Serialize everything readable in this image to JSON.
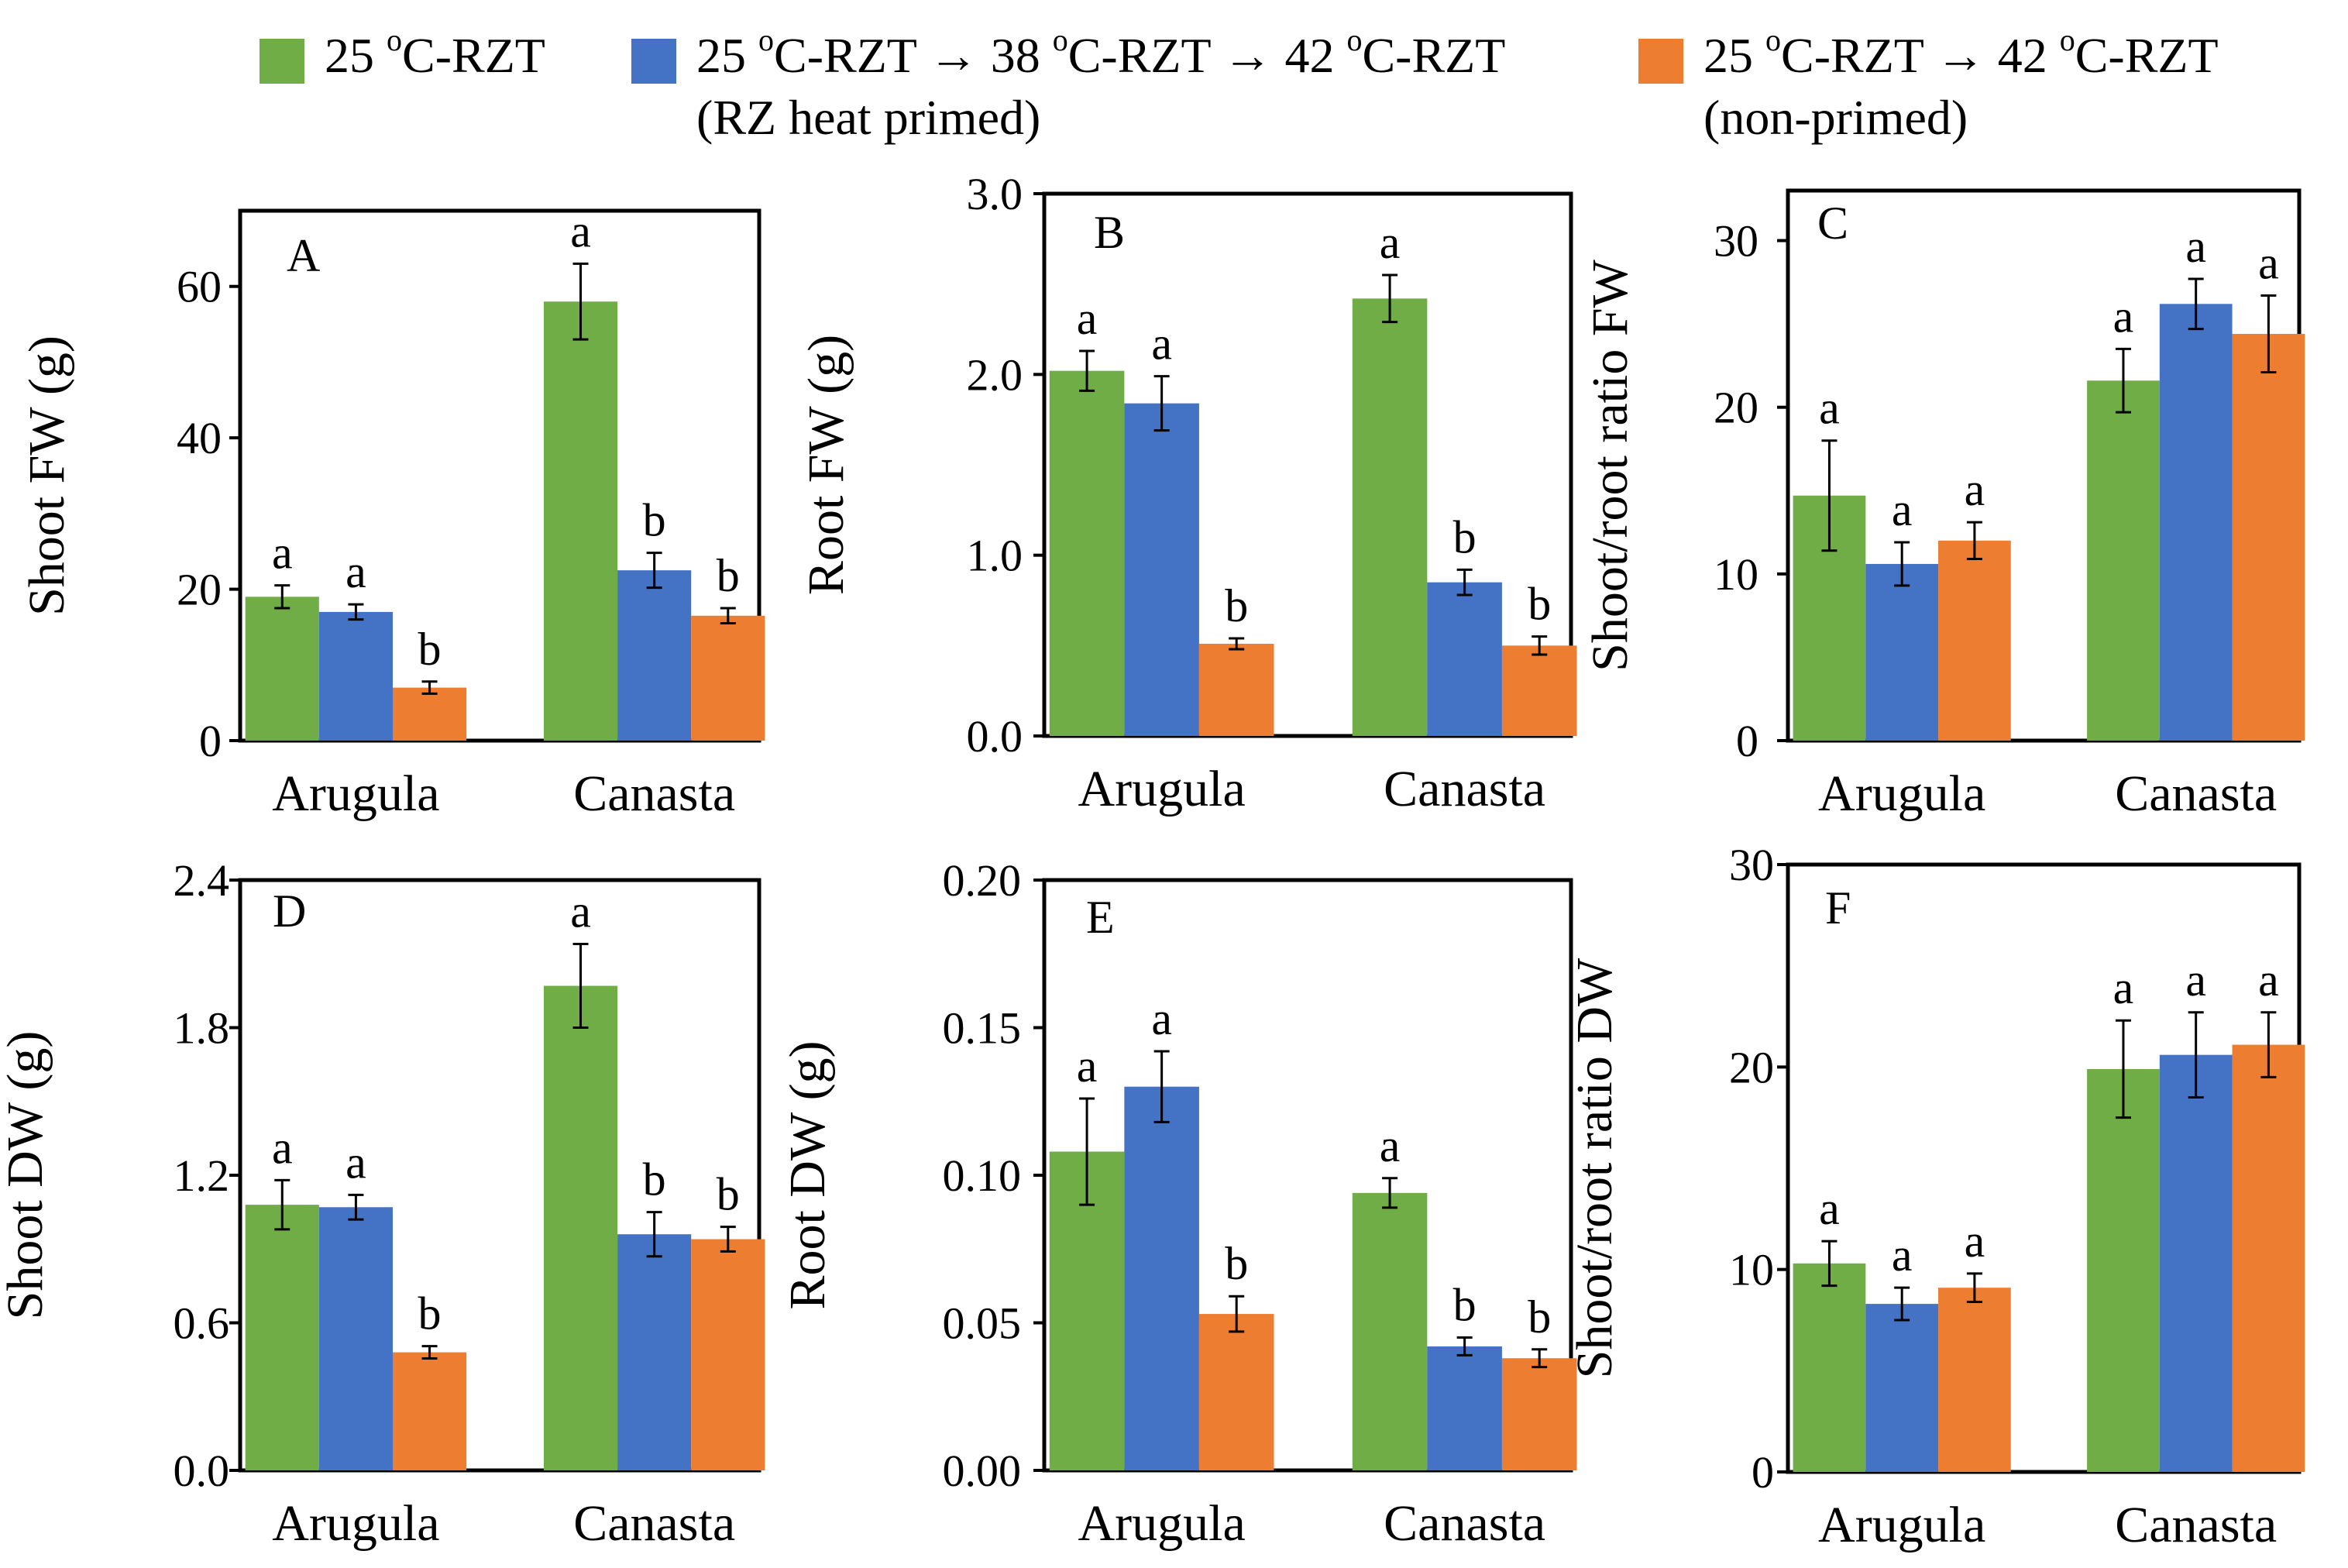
{
  "legend": {
    "items": [
      {
        "name": "legend-25C",
        "line1": "25 ",
        "sup": "o",
        "rest": "C-RZT",
        "line2": "",
        "color": "#70ad47"
      },
      {
        "name": "legend-primed",
        "line1": "25 ",
        "sup": "o",
        "rest": "C-RZT → 38 ",
        "sup2": "o",
        "rest2": "C-RZT → 42 ",
        "sup3": "o",
        "rest3": "C-RZT",
        "line2": "(RZ heat primed)",
        "color": "#4472c4"
      },
      {
        "name": "legend-nonprimed",
        "line1": "25 ",
        "sup": "o",
        "rest": "C-RZT → 42 ",
        "sup2": "o",
        "rest2": "C-RZT",
        "line2": "(non-primed)",
        "color": "#ed7d31"
      }
    ]
  },
  "colors": {
    "green": "#70ad47",
    "blue": "#4472c4",
    "orange": "#ed7d31"
  },
  "chart_data": [
    {
      "panel": "A",
      "type": "bar",
      "ylabel": "Shoot FW (g)",
      "ylim": [
        0,
        70
      ],
      "yticks": [
        "0",
        "20",
        "40",
        "60"
      ],
      "ytick_values": [
        0,
        20,
        40,
        60
      ],
      "categories": [
        "Arugula",
        "Canasta"
      ],
      "series": [
        {
          "name": "25 oC-RZT",
          "values": [
            19,
            58
          ],
          "errors": [
            1.5,
            5
          ],
          "letters": [
            "a",
            "a"
          ]
        },
        {
          "name": "RZ heat primed",
          "values": [
            17,
            22.5
          ],
          "errors": [
            1,
            2.3
          ],
          "letters": [
            "a",
            "b"
          ]
        },
        {
          "name": "non-primed",
          "values": [
            7,
            16.5
          ],
          "errors": [
            0.8,
            1
          ],
          "letters": [
            "b",
            "b"
          ]
        }
      ]
    },
    {
      "panel": "B",
      "type": "bar",
      "ylabel": "Root FW (g)",
      "ylim": [
        0,
        3.0
      ],
      "yticks": [
        "0.0",
        "1.0",
        "2.0",
        "3.0"
      ],
      "ytick_values": [
        0,
        1,
        2,
        3
      ],
      "categories": [
        "Arugula",
        "Canasta"
      ],
      "series": [
        {
          "name": "25 oC-RZT",
          "values": [
            2.02,
            2.42
          ],
          "errors": [
            0.11,
            0.13
          ],
          "letters": [
            "a",
            "a"
          ]
        },
        {
          "name": "RZ heat primed",
          "values": [
            1.84,
            0.85
          ],
          "errors": [
            0.15,
            0.07
          ],
          "letters": [
            "a",
            "b"
          ]
        },
        {
          "name": "non-primed",
          "values": [
            0.51,
            0.5
          ],
          "errors": [
            0.03,
            0.05
          ],
          "letters": [
            "b",
            "b"
          ]
        }
      ]
    },
    {
      "panel": "C",
      "type": "bar",
      "ylabel": "Shoot/root ratio FW",
      "ylim": [
        0,
        33
      ],
      "yticks": [
        "0",
        "10",
        "20",
        "30"
      ],
      "ytick_values": [
        0,
        10,
        20,
        30
      ],
      "categories": [
        "Arugula",
        "Canasta"
      ],
      "series": [
        {
          "name": "25 oC-RZT",
          "values": [
            14.7,
            21.6
          ],
          "errors": [
            3.3,
            1.9
          ],
          "letters": [
            "a",
            "a"
          ]
        },
        {
          "name": "RZ heat primed",
          "values": [
            10.6,
            26.2
          ],
          "errors": [
            1.3,
            1.5
          ],
          "letters": [
            "a",
            "a"
          ]
        },
        {
          "name": "non-primed",
          "values": [
            12.0,
            24.4
          ],
          "errors": [
            1.1,
            2.3
          ],
          "letters": [
            "a",
            "a"
          ]
        }
      ]
    },
    {
      "panel": "D",
      "type": "bar",
      "ylabel": "Shoot DW (g)",
      "ylim": [
        0,
        2.4
      ],
      "yticks": [
        "0.0",
        "0.6",
        "1.2",
        "1.8",
        "2.4"
      ],
      "ytick_values": [
        0,
        0.6,
        1.2,
        1.8,
        2.4
      ],
      "categories": [
        "Arugula",
        "Canasta"
      ],
      "series": [
        {
          "name": "25 oC-RZT",
          "values": [
            1.08,
            1.97
          ],
          "errors": [
            0.1,
            0.17
          ],
          "letters": [
            "a",
            "a"
          ]
        },
        {
          "name": "RZ heat primed",
          "values": [
            1.07,
            0.96
          ],
          "errors": [
            0.05,
            0.09
          ],
          "letters": [
            "a",
            "b"
          ]
        },
        {
          "name": "non-primed",
          "values": [
            0.48,
            0.94
          ],
          "errors": [
            0.025,
            0.05
          ],
          "letters": [
            "b",
            "b"
          ]
        }
      ]
    },
    {
      "panel": "E",
      "type": "bar",
      "ylabel": "Root DW (g)",
      "ylim": [
        0,
        0.2
      ],
      "yticks": [
        "0.00",
        "0.05",
        "0.10",
        "0.15",
        "0.20"
      ],
      "ytick_values": [
        0,
        0.05,
        0.1,
        0.15,
        0.2
      ],
      "categories": [
        "Arugula",
        "Canasta"
      ],
      "series": [
        {
          "name": "25 oC-RZT",
          "values": [
            0.108,
            0.094
          ],
          "errors": [
            0.018,
            0.005
          ],
          "letters": [
            "a",
            "a"
          ]
        },
        {
          "name": "RZ heat primed",
          "values": [
            0.13,
            0.042
          ],
          "errors": [
            0.012,
            0.003
          ],
          "letters": [
            "a",
            "b"
          ]
        },
        {
          "name": "non-primed",
          "values": [
            0.053,
            0.038
          ],
          "errors": [
            0.006,
            0.003
          ],
          "letters": [
            "b",
            "b"
          ]
        }
      ]
    },
    {
      "panel": "F",
      "type": "bar",
      "ylabel": "Shoot/root ratio DW",
      "ylim": [
        0,
        30
      ],
      "yticks": [
        "0",
        "10",
        "20",
        "30"
      ],
      "ytick_values": [
        0,
        10,
        20,
        30
      ],
      "categories": [
        "Arugula",
        "Canasta"
      ],
      "series": [
        {
          "name": "25 oC-RZT",
          "values": [
            10.3,
            19.9
          ],
          "errors": [
            1.1,
            2.4
          ],
          "letters": [
            "a",
            "a"
          ]
        },
        {
          "name": "RZ heat primed",
          "values": [
            8.3,
            20.6
          ],
          "errors": [
            0.8,
            2.1
          ],
          "letters": [
            "a",
            "a"
          ]
        },
        {
          "name": "non-primed",
          "values": [
            9.1,
            21.1
          ],
          "errors": [
            0.7,
            1.6
          ],
          "letters": [
            "a",
            "a"
          ]
        }
      ]
    }
  ]
}
